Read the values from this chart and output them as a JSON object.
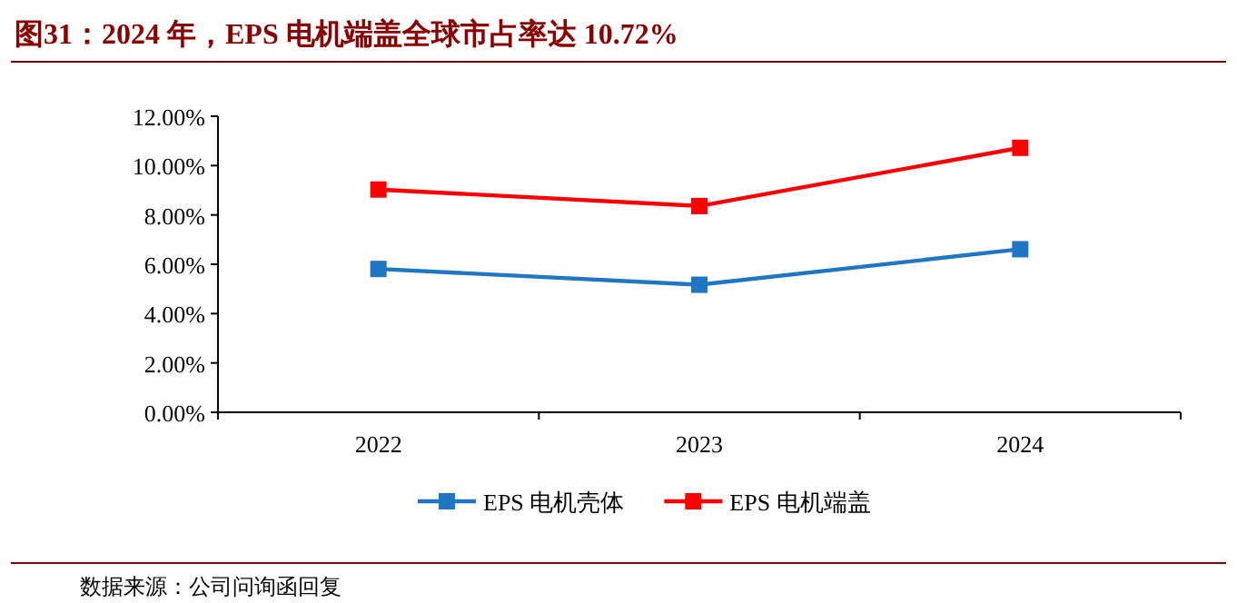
{
  "chart_data": {
    "type": "line",
    "title": "图31：2024 年，EPS 电机端盖全球市占率达 10.72%",
    "categories": [
      "2022",
      "2023",
      "2024"
    ],
    "series": [
      {
        "name": "EPS 电机壳体",
        "color": "#1f77c4",
        "values": [
          5.81,
          5.17,
          6.61
        ]
      },
      {
        "name": "EPS 电机端盖",
        "color": "#ff0000",
        "values": [
          9.03,
          8.36,
          10.72
        ]
      }
    ],
    "ylim": [
      0,
      12
    ],
    "yticks": [
      {
        "value": 0,
        "label": "0.00%"
      },
      {
        "value": 2,
        "label": "2.00%"
      },
      {
        "value": 4,
        "label": "4.00%"
      },
      {
        "value": 6,
        "label": "6.00%"
      },
      {
        "value": 8,
        "label": "8.00%"
      },
      {
        "value": 10,
        "label": "10.00%"
      },
      {
        "value": 12,
        "label": "12.00%"
      }
    ],
    "marker": "square",
    "legend": "bottom",
    "grid": false,
    "annotations": [
      "数据来源：公司问询函回复"
    ]
  }
}
